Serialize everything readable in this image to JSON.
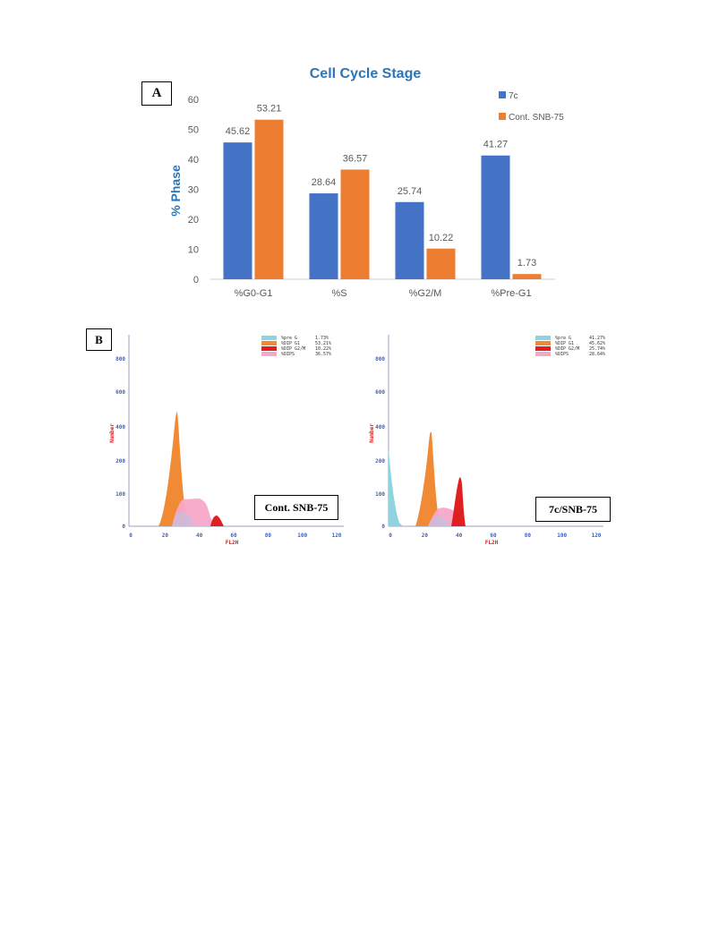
{
  "panel_a": {
    "label": "A",
    "chart_data": {
      "type": "bar",
      "title": "Cell Cycle Stage",
      "ylabel": "% Phase",
      "xlabel": "",
      "ylim": [
        0,
        60
      ],
      "yticks": [
        0,
        10,
        20,
        30,
        40,
        50,
        60
      ],
      "categories": [
        "%G0-G1",
        "%S",
        "%G2/M",
        "%Pre-G1"
      ],
      "series": [
        {
          "name": "7c",
          "values": [
            45.62,
            28.64,
            25.74,
            41.27
          ],
          "color": "#4472c4"
        },
        {
          "name": "Cont. SNB-75",
          "values": [
            53.21,
            36.57,
            10.22,
            1.73
          ],
          "color": "#ed7d31"
        }
      ],
      "data_labels": [
        [
          "45.62",
          "28.64",
          "25.74",
          "41.27"
        ],
        [
          "53.21",
          "36.57",
          "10.22",
          "1.73"
        ]
      ],
      "legend": "top-right",
      "grid": false
    }
  },
  "panel_b": {
    "label": "B",
    "histograms": [
      {
        "box_label": "Cont. SNB-75",
        "ylabel": "Number",
        "xlabel": "FL2H",
        "xticks": [
          "0",
          "20",
          "40",
          "60",
          "80",
          "100",
          "120"
        ],
        "yticks": [
          "0",
          "100",
          "200",
          "400",
          "600",
          "800"
        ],
        "legend": [
          {
            "name": "%pre G",
            "value": "1.73%",
            "color": "#8fd3e0"
          },
          {
            "name": "%DIP G1",
            "value": "53.21%",
            "color": "#f08a34"
          },
          {
            "name": "%DIP G2/M",
            "value": "10.22%",
            "color": "#e02020"
          },
          {
            "name": "%DIPS",
            "value": "36.57%",
            "color": "#f7a8c8"
          }
        ]
      },
      {
        "box_label": "7c/SNB-75",
        "ylabel": "Number",
        "xlabel": "FL2H",
        "xticks": [
          "0",
          "20",
          "40",
          "60",
          "80",
          "100",
          "120"
        ],
        "yticks": [
          "0",
          "100",
          "200",
          "400",
          "600",
          "800"
        ],
        "legend": [
          {
            "name": "%pre G",
            "value": "41.27%",
            "color": "#8fd3e0"
          },
          {
            "name": "%DIP G1",
            "value": "45.62%",
            "color": "#f08a34"
          },
          {
            "name": "%DIP G2/M",
            "value": "25.74%",
            "color": "#e02020"
          },
          {
            "name": "%DIPS",
            "value": "28.64%",
            "color": "#f7a8c8"
          }
        ]
      }
    ]
  }
}
